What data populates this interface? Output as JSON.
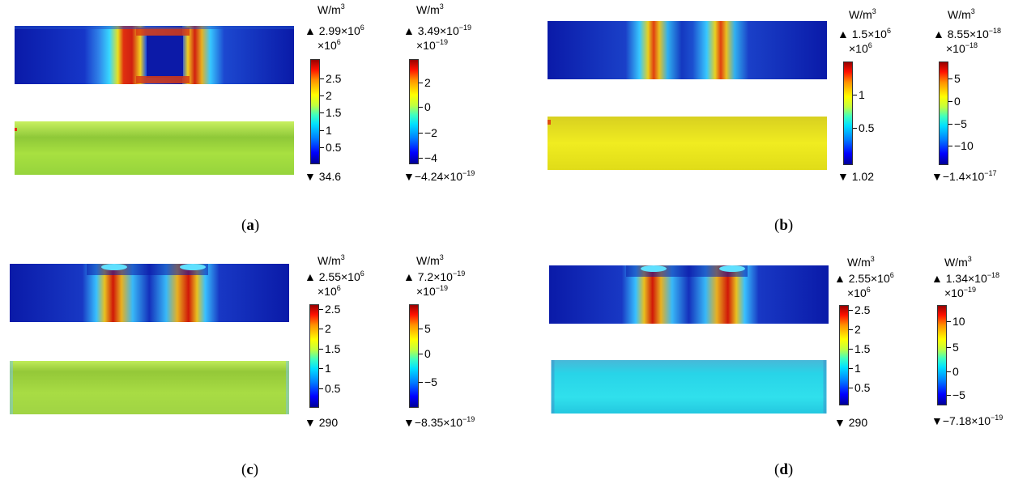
{
  "unit": "W/m",
  "unit_exp": "3",
  "times": "×",
  "max_marker": "▲",
  "min_marker": "▼",
  "panels": {
    "a": {
      "caption": "a",
      "left_bar": {
        "max_mant": "2.99×10",
        "max_exp": "6",
        "mult": "×10",
        "mult_exp": "6",
        "ticks": [
          "2.5",
          "2",
          "1.5",
          "1",
          "0.5"
        ],
        "min": "34.6"
      },
      "right_bar": {
        "max_mant": "3.49×10",
        "max_exp": "−19",
        "mult": "×10",
        "mult_exp": "−19",
        "ticks": [
          "2",
          "0",
          "−2",
          "−4"
        ],
        "min_mant": "−4.24×10",
        "min_exp": "−19"
      }
    },
    "b": {
      "caption": "b",
      "left_bar": {
        "max_mant": "1.5×10",
        "max_exp": "6",
        "mult": "×10",
        "mult_exp": "6",
        "ticks": [
          "1",
          "0.5"
        ],
        "min": "1.02"
      },
      "right_bar": {
        "max_mant": "8.55×10",
        "max_exp": "−18",
        "mult": "×10",
        "mult_exp": "−18",
        "ticks": [
          "5",
          "0",
          "−5",
          "−10"
        ],
        "min_mant": "−1.4×10",
        "min_exp": "−17"
      }
    },
    "c": {
      "caption": "c",
      "left_bar": {
        "max_mant": "2.55×10",
        "max_exp": "6",
        "mult": "×10",
        "mult_exp": "6",
        "ticks": [
          "2.5",
          "2",
          "1.5",
          "1",
          "0.5"
        ],
        "min": "290"
      },
      "right_bar": {
        "max_mant": "7.2×10",
        "max_exp": "−19",
        "mult": "×10",
        "mult_exp": "−19",
        "ticks": [
          "5",
          "0",
          "−5"
        ],
        "min_mant": "−8.35×10",
        "min_exp": "−19"
      }
    },
    "d": {
      "caption": "d",
      "left_bar": {
        "max_mant": "2.55×10",
        "max_exp": "6",
        "mult": "×10",
        "mult_exp": "6",
        "ticks": [
          "2.5",
          "2",
          "1.5",
          "1",
          "0.5"
        ],
        "min": "290"
      },
      "right_bar": {
        "max_mant": "1.34×10",
        "max_exp": "−18",
        "mult": "×10",
        "mult_exp": "−19",
        "ticks": [
          "10",
          "5",
          "0",
          "−5"
        ],
        "min_mant": "−7.18×10",
        "min_exp": "−19"
      }
    }
  },
  "colors": {
    "bottom_a": "#a8e040",
    "bottom_b": "#ecec18",
    "bottom_c": "#a8dc44",
    "bottom_d": "#28dce8"
  }
}
